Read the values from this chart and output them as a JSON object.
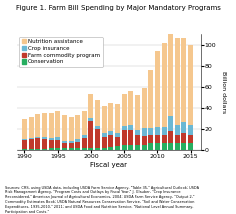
{
  "title": "Figure 1. Farm Bill Spending by Major Mandatory Programs",
  "xlabel": "Fiscal year",
  "ylabel": "Billion dollars",
  "years": [
    1990,
    1991,
    1992,
    1993,
    1994,
    1995,
    1996,
    1997,
    1998,
    1999,
    2000,
    2001,
    2002,
    2003,
    2004,
    2005,
    2006,
    2007,
    2008,
    2009,
    2010,
    2011,
    2012,
    2013,
    2014,
    2015
  ],
  "nutrition": [
    19,
    20,
    22,
    23,
    24,
    25,
    25,
    23,
    23,
    23,
    23,
    24,
    26,
    27,
    28,
    30,
    32,
    33,
    38,
    55,
    72,
    80,
    83,
    82,
    80,
    76
  ],
  "crop_insurance": [
    1.5,
    1.5,
    1.5,
    2,
    2,
    2.5,
    2,
    2,
    2.5,
    3,
    3.5,
    3,
    4,
    4,
    4,
    4,
    5,
    5,
    8,
    7,
    8,
    8,
    14,
    10,
    10,
    10
  ],
  "farm_commodity": [
    8,
    9,
    10,
    9,
    8,
    8,
    5,
    5,
    6,
    9,
    25,
    18,
    10,
    11,
    8,
    14,
    14,
    9,
    8,
    8,
    8,
    8,
    12,
    8,
    10,
    8
  ],
  "conservation": [
    1,
    1,
    1,
    1,
    1.5,
    1.5,
    1.5,
    1.5,
    1.5,
    2,
    2,
    2,
    2,
    3,
    4,
    5,
    5,
    5,
    5,
    6,
    6,
    6,
    6,
    6,
    6,
    6
  ],
  "color_nutrition": "#F5C78E",
  "color_crop": "#6BB8D4",
  "color_commodity": "#C0392B",
  "color_conservation": "#27AE60",
  "ylim": [
    0,
    110
  ],
  "yticks": [
    0,
    20,
    40,
    60,
    80,
    100
  ],
  "xticks": [
    1990,
    1995,
    2000,
    2005,
    2010,
    2015
  ],
  "source_text": "Sources: CRS, using USDA data, including USDA Farm Service Agency, \"Table 35,\" Agricultural Outlook; USDA\nRisk Management Agency, \"Program Costs and Outlays by Fiscal Year;\" J. Glauber, \"Crop Insurance\nReconsidered,\" American Journal of Agricultural Economics, 2004; USDA Farm Service Agency, \"Output 2,\"\nCommodity Estimates Book; USDA Natural Resources Conservation Service, \"Soil and Water Conservation\nExpenditures, 1935-2010,\" 2011; and USDA Food and Nutrition Service, \"National Level Annual Summary,\nParticipation and Costs.\""
}
